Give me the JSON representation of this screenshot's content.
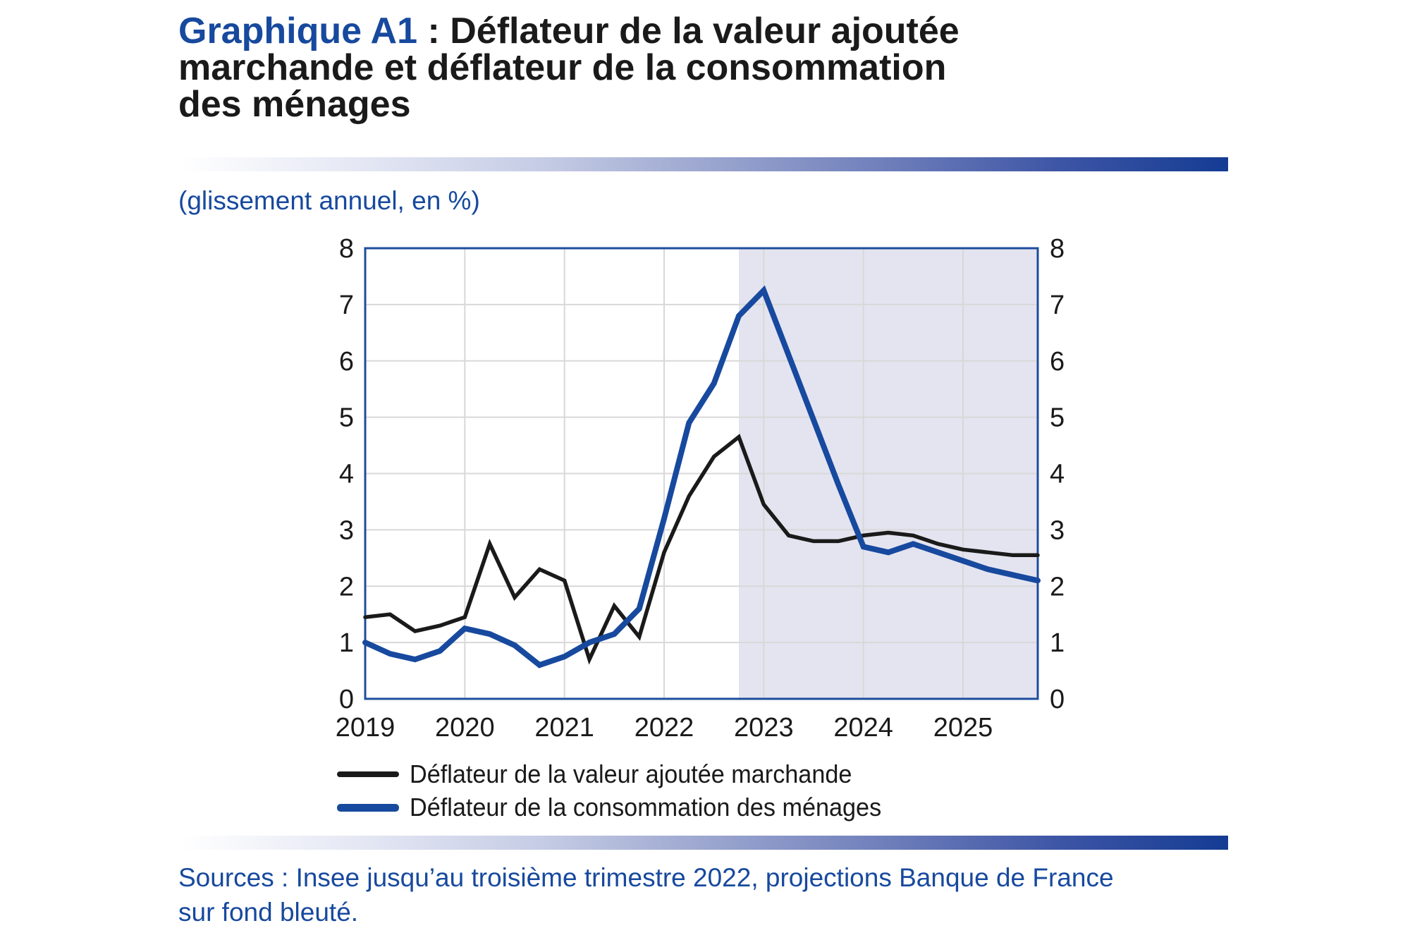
{
  "title": {
    "line1_blue": "Graphique A1",
    "line1_black": " : Déflateur de la valeur ajoutée",
    "line2": "marchande et déflateur de la consommation",
    "line3": "des ménages"
  },
  "subtitle": "(glissement annuel, en %)",
  "sources": {
    "line1": "Sources : Insee jusqu’au troisième trimestre 2022, projections Banque de France",
    "line2": "sur fond bleuté."
  },
  "colors": {
    "brand_blue": "#17499e",
    "text_black": "#1a1a1a",
    "frame_blue": "#1d4d9c",
    "grid_gray": "#d8d8d8",
    "projection_fill": "#e4e4f0",
    "gradient_bar_start": "#ffffff",
    "gradient_bar_end": "#143c93"
  },
  "chart_data": {
    "type": "line",
    "title": "Déflateur de la valeur ajoutée marchande et déflateur de la consommation des ménages",
    "ylabel": "glissement annuel, en %",
    "frequency": "quarterly",
    "n_points": 28,
    "x_range": "2019T1 à 2025T4",
    "x_year_ticks": [
      {
        "label": "2019",
        "q": 0
      },
      {
        "label": "2020",
        "q": 4
      },
      {
        "label": "2021",
        "q": 8
      },
      {
        "label": "2022",
        "q": 12
      },
      {
        "label": "2023",
        "q": 16
      },
      {
        "label": "2024",
        "q": 20
      },
      {
        "label": "2025",
        "q": 24
      }
    ],
    "ylim": [
      0,
      8
    ],
    "yticks": [
      0,
      1,
      2,
      3,
      4,
      5,
      6,
      7,
      8
    ],
    "y_axis_sides": "left and right",
    "grid": true,
    "projection": {
      "start_q": 15,
      "start_label": "2022T4",
      "fill": "#e4e4f0",
      "note": "projections Banque de France sur fond bleuté"
    },
    "series": [
      {
        "name": "Déflateur de la valeur ajoutée marchande",
        "color": "#1a1a1a",
        "stroke_width": 5.5,
        "values": [
          1.45,
          1.5,
          1.2,
          1.3,
          1.45,
          2.75,
          1.8,
          2.3,
          2.1,
          0.7,
          1.65,
          1.1,
          2.6,
          3.6,
          4.3,
          4.65,
          3.45,
          2.9,
          2.8,
          2.8,
          2.9,
          2.95,
          2.9,
          2.75,
          2.65,
          2.6,
          2.55,
          2.55
        ]
      },
      {
        "name": "Déflateur de la consommation des ménages",
        "color": "#17499e",
        "stroke_width": 8,
        "values": [
          1.0,
          0.8,
          0.7,
          0.85,
          1.25,
          1.15,
          0.95,
          0.6,
          0.75,
          1.0,
          1.15,
          1.6,
          3.2,
          4.9,
          5.6,
          6.8,
          7.25,
          6.1,
          4.95,
          3.8,
          2.7,
          2.6,
          2.75,
          2.6,
          2.45,
          2.3,
          2.2,
          2.1
        ]
      }
    ],
    "legend_position": "bottom-left"
  }
}
